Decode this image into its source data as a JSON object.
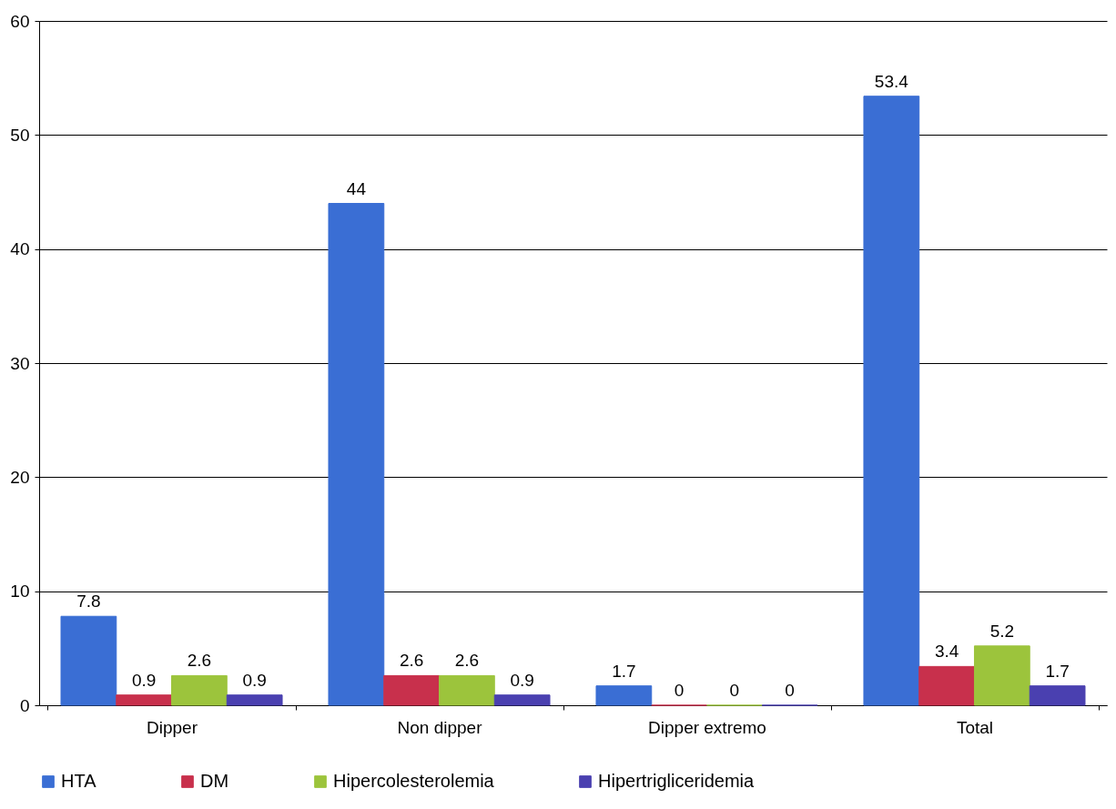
{
  "chart_data": {
    "type": "bar",
    "categories": [
      "Dipper",
      "Non dipper",
      "Dipper extremo",
      "Total"
    ],
    "series": [
      {
        "name": "HTA",
        "color": "#3a6ed4",
        "values": [
          7.8,
          44,
          1.7,
          53.4
        ]
      },
      {
        "name": "DM",
        "color": "#c8304c",
        "values": [
          0.9,
          2.6,
          0,
          3.4
        ]
      },
      {
        "name": "Hipercolesterolemia",
        "color": "#9cc43c",
        "values": [
          2.6,
          2.6,
          0,
          5.2
        ]
      },
      {
        "name": "Hipertrigliceridemia",
        "color": "#4a40b0",
        "values": [
          0.9,
          0.9,
          0,
          1.7
        ]
      }
    ],
    "ylim": [
      0,
      60
    ],
    "yticks": [
      0,
      10,
      20,
      30,
      40,
      50,
      60
    ],
    "grid": "y",
    "legend": "bottom",
    "data_labels": true
  }
}
